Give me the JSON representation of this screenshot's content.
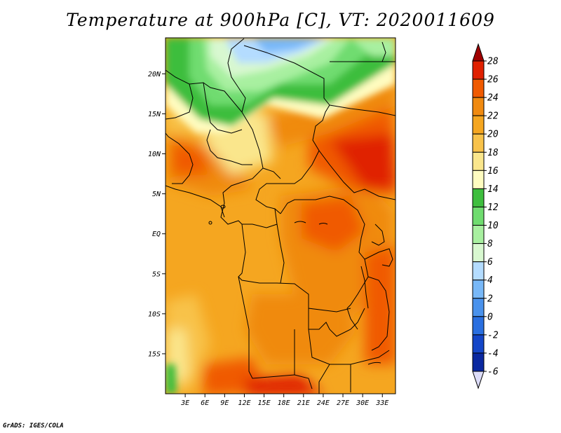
{
  "title": "Temperature at 900hPa [C], VT: 2020011609",
  "footer": "GrADS: IGES/COLA",
  "map": {
    "variable": "Temperature at 900hPa",
    "units": "C",
    "valid_time": "2020011609",
    "lat_range": [
      -20,
      24.5
    ],
    "lon_range": [
      0,
      35
    ],
    "lat_ticks": [
      "20N",
      "15N",
      "10N",
      "5N",
      "EQ",
      "5S",
      "10S",
      "15S"
    ],
    "lon_ticks": [
      "3E",
      "6E",
      "9E",
      "12E",
      "15E",
      "18E",
      "21E",
      "24E",
      "27E",
      "30E",
      "33E"
    ]
  },
  "colorbar": {
    "labels": [
      "28",
      "26",
      "24",
      "22",
      "20",
      "18",
      "16",
      "14",
      "12",
      "10",
      "8",
      "6",
      "4",
      "2",
      "0",
      "-2",
      "-4",
      "-6"
    ],
    "colors": [
      "#a00000",
      "#e02000",
      "#f05a00",
      "#f08a10",
      "#f5a620",
      "#f8c24a",
      "#fae68c",
      "#fffcc0",
      "#3ebe3e",
      "#6fdc6f",
      "#a8f0a0",
      "#d8f8d0",
      "#b4dcff",
      "#78b8f8",
      "#4a92ec",
      "#2a6fe0",
      "#1446c8",
      "#0a28a0",
      "#000a60",
      "#dcdcf8"
    ]
  }
}
